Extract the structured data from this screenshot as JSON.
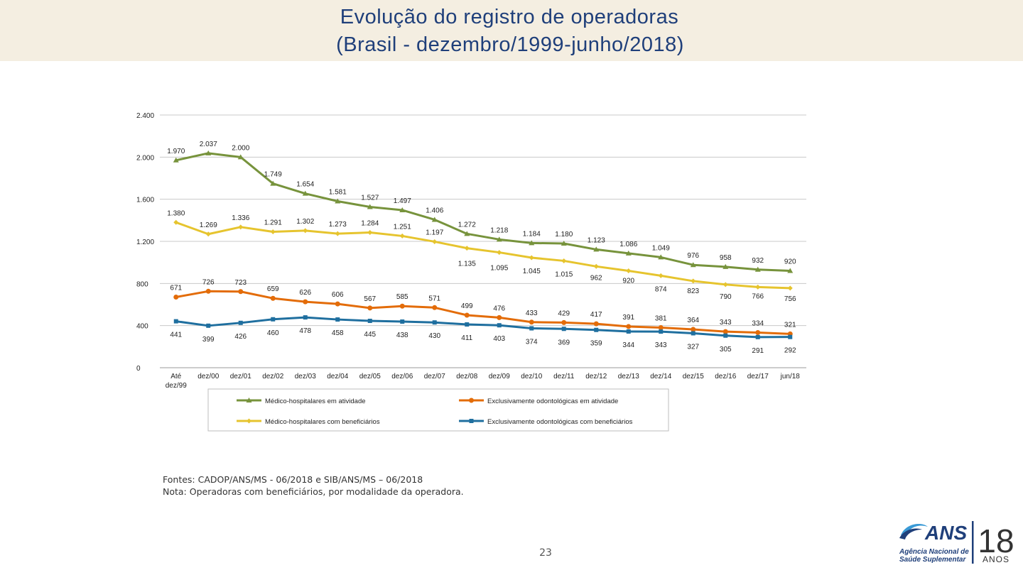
{
  "header": {
    "title_line1": "Evolução do registro de operadoras",
    "title_line2": "(Brasil - dezembro/1999-junho/2018)"
  },
  "chart_data": {
    "type": "line",
    "title": "Evolução do registro de operadoras (Brasil - dezembro/1999-junho/2018)",
    "categories": [
      "Até dez/99",
      "dez/00",
      "dez/01",
      "dez/02",
      "dez/03",
      "dez/04",
      "dez/05",
      "dez/06",
      "dez/07",
      "dez/08",
      "dez/09",
      "dez/10",
      "dez/11",
      "dez/12",
      "dez/13",
      "dez/14",
      "dez/15",
      "dez/16",
      "dez/17",
      "jun/18"
    ],
    "y_ticks": [
      0,
      400,
      800,
      1200,
      1600,
      2000,
      2400
    ],
    "y_tick_labels": [
      "0",
      "400",
      "800",
      "1.200",
      "1.600",
      "2.000",
      "2.400"
    ],
    "ylim": [
      0,
      2400
    ],
    "grid": true,
    "legend_position": "bottom",
    "series": [
      {
        "name": "Médico-hospitalares em atividade",
        "color": "#77933c",
        "marker": "triangle",
        "values": [
          1970,
          2037,
          2000,
          1749,
          1654,
          1581,
          1527,
          1497,
          1406,
          1272,
          1218,
          1184,
          1180,
          1123,
          1086,
          1049,
          976,
          958,
          932,
          920
        ],
        "labels": [
          "1.970",
          "2.037",
          "2.000",
          "1.749",
          "1.654",
          "1.581",
          "1.527",
          "1.497",
          "1.406",
          "1.272",
          "1.218",
          "1.184",
          "1.180",
          "1.123",
          "1.086",
          "1.049",
          "976",
          "958",
          "932",
          "920"
        ]
      },
      {
        "name": "Médico-hospitalares com beneficiários",
        "color": "#e6c42e",
        "marker": "diamond",
        "values": [
          1380,
          1269,
          1336,
          1291,
          1302,
          1273,
          1284,
          1251,
          1197,
          1135,
          1095,
          1045,
          1015,
          962,
          920,
          874,
          823,
          790,
          766,
          756
        ],
        "labels": [
          "1.380",
          "1.269",
          "1.336",
          "1.291",
          "1.302",
          "1.273",
          "1.284",
          "1.251",
          "1.197",
          "1.135",
          "1.095",
          "1.045",
          "1.015",
          "962",
          "920",
          "874",
          "823",
          "790",
          "766",
          "756"
        ]
      },
      {
        "name": "Exclusivamente odontológicas em atividade",
        "color": "#e36c09",
        "marker": "circle",
        "values": [
          671,
          726,
          723,
          659,
          626,
          606,
          567,
          585,
          571,
          499,
          476,
          433,
          429,
          417,
          391,
          381,
          364,
          343,
          334,
          321
        ],
        "labels": [
          "671",
          "726",
          "723",
          "659",
          "626",
          "606",
          "567",
          "585",
          "571",
          "499",
          "476",
          "433",
          "429",
          "417",
          "391",
          "381",
          "364",
          "343",
          "334",
          "321"
        ]
      },
      {
        "name": "Exclusivamente odontológicas com beneficiários",
        "color": "#1f6f9f",
        "marker": "square",
        "values": [
          441,
          399,
          426,
          460,
          478,
          458,
          445,
          438,
          430,
          411,
          403,
          374,
          369,
          359,
          344,
          343,
          327,
          305,
          291,
          292
        ],
        "labels": [
          "441",
          "399",
          "426",
          "460",
          "478",
          "458",
          "445",
          "438",
          "430",
          "411",
          "403",
          "374",
          "369",
          "359",
          "344",
          "343",
          "327",
          "305",
          "291",
          "292"
        ]
      }
    ]
  },
  "notes": {
    "line1": "Fontes: CADOP/ANS/MS - 06/2018 e SIB/ANS/MS – 06/2018",
    "line2": "Nota: Operadoras com beneficiários, por modalidade da operadora."
  },
  "page_number": "23",
  "logo": {
    "brand": "ANS",
    "line1": "Agência Nacional de",
    "line2": "Saúde Suplementar",
    "years": "18",
    "years_word": "ANOS"
  }
}
